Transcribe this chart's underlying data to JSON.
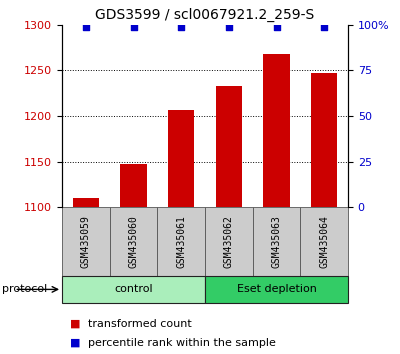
{
  "title": "GDS3599 / scl0067921.2_259-S",
  "samples": [
    "GSM435059",
    "GSM435060",
    "GSM435061",
    "GSM435062",
    "GSM435063",
    "GSM435064"
  ],
  "bar_values": [
    1110,
    1147,
    1207,
    1233,
    1268,
    1247
  ],
  "percentile_values": [
    99,
    99,
    99,
    99,
    99,
    99
  ],
  "bar_color": "#cc0000",
  "dot_color": "#0000cc",
  "ylim_left": [
    1100,
    1300
  ],
  "ylim_right": [
    0,
    100
  ],
  "yticks_left": [
    1100,
    1150,
    1200,
    1250,
    1300
  ],
  "yticks_right": [
    0,
    25,
    50,
    75,
    100
  ],
  "ytick_labels_right": [
    "0",
    "25",
    "50",
    "75",
    "100%"
  ],
  "grid_values": [
    1150,
    1200,
    1250
  ],
  "protocol_groups": [
    {
      "label": "control",
      "indices": [
        0,
        1,
        2
      ],
      "color": "#aaeebb"
    },
    {
      "label": "Eset depletion",
      "indices": [
        3,
        4,
        5
      ],
      "color": "#33cc66"
    }
  ],
  "protocol_label": "protocol",
  "legend_bar_label": "transformed count",
  "legend_dot_label": "percentile rank within the sample",
  "bar_width": 0.55,
  "bar_base": 1100,
  "left_axis_color": "#cc0000",
  "right_axis_color": "#0000cc",
  "title_fontsize": 10,
  "tick_fontsize": 8,
  "sample_fontsize": 7,
  "proto_fontsize": 8,
  "legend_fontsize": 8
}
